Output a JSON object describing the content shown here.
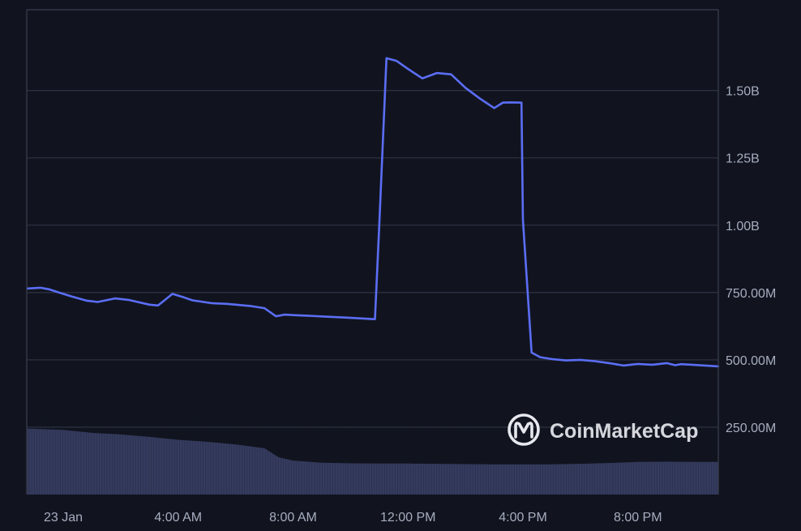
{
  "colors": {
    "background": "#11141f",
    "grid": "#2b3040",
    "axis_line": "#3a3f50",
    "line": "#5b6ef5",
    "volume": "#353b5e",
    "tick_text": "#a7adbf",
    "watermark": "#e6e8ee"
  },
  "watermark": {
    "text": "CoinMarketCap",
    "icon": "coinmarketcap-logo-icon"
  },
  "chart_data": {
    "type": "line",
    "title": "",
    "xlabel": "",
    "ylabel": "",
    "y_axis_position": "right",
    "grid": "horizontal",
    "ylim": [
      0,
      1800000000
    ],
    "xlim": [
      -1.27,
      22.8
    ],
    "y_ticks": [
      {
        "value": 250000000,
        "label": "250.00M"
      },
      {
        "value": 500000000,
        "label": "500.00M"
      },
      {
        "value": 750000000,
        "label": "750.00M"
      },
      {
        "value": 1000000000,
        "label": "1.00B"
      },
      {
        "value": 1250000000,
        "label": "1.25B"
      },
      {
        "value": 1500000000,
        "label": "1.50B"
      }
    ],
    "x_ticks": [
      {
        "value": 0,
        "label": "23 Jan"
      },
      {
        "value": 4,
        "label": "4:00 AM"
      },
      {
        "value": 8,
        "label": "8:00 AM"
      },
      {
        "value": 12,
        "label": "12:00 PM"
      },
      {
        "value": 16,
        "label": "4:00 PM"
      },
      {
        "value": 20,
        "label": "8:00 PM"
      }
    ],
    "series": [
      {
        "kind": "line",
        "x": [
          -1.25,
          -0.8,
          -0.5,
          -0.2,
          0.3,
          0.8,
          1.2,
          1.8,
          2.3,
          3.0,
          3.3,
          3.8,
          4.2,
          4.5,
          5.2,
          5.7,
          6.5,
          7.0,
          7.4,
          7.7,
          8.0,
          8.5,
          9.2,
          9.8,
          10.2,
          10.7,
          10.85,
          11.0,
          11.25,
          11.6,
          12.0,
          12.5,
          13.0,
          13.5,
          14.0,
          14.5,
          15.0,
          15.3,
          15.6,
          15.95,
          16.0,
          16.3,
          16.6,
          17.0,
          17.5,
          18.0,
          18.5,
          19.0,
          19.5,
          20.0,
          20.5,
          21.0,
          21.3,
          21.5,
          22.0,
          22.8
        ],
        "y": [
          765000000,
          768000000,
          762000000,
          752000000,
          735000000,
          720000000,
          715000000,
          728000000,
          722000000,
          705000000,
          702000000,
          745000000,
          732000000,
          721000000,
          710000000,
          708000000,
          700000000,
          692000000,
          662000000,
          668000000,
          666000000,
          664000000,
          660000000,
          657000000,
          655000000,
          652000000,
          651000000,
          1000000000,
          1620000000,
          1610000000,
          1580000000,
          1545000000,
          1565000000,
          1560000000,
          1510000000,
          1470000000,
          1435000000,
          1455000000,
          1456000000,
          1455000000,
          1020000000,
          527000000,
          510000000,
          503000000,
          498000000,
          500000000,
          495000000,
          488000000,
          479000000,
          485000000,
          482000000,
          488000000,
          480000000,
          484000000,
          481000000,
          476000000
        ]
      },
      {
        "kind": "volume",
        "x": [
          -1.25,
          0.0,
          1.0,
          2.0,
          3.0,
          4.0,
          5.0,
          6.0,
          7.0,
          7.5,
          8.0,
          9.0,
          10.0,
          11.0,
          12.0,
          13.0,
          14.0,
          15.0,
          16.0,
          17.0,
          18.0,
          19.0,
          20.0,
          21.0,
          22.0,
          22.8
        ],
        "y": [
          245000000,
          240000000,
          229000000,
          223000000,
          214000000,
          203000000,
          196000000,
          186000000,
          172000000,
          138000000,
          126000000,
          118000000,
          116000000,
          115000000,
          115000000,
          114000000,
          113000000,
          112000000,
          112000000,
          112000000,
          114000000,
          117000000,
          121000000,
          122000000,
          121000000,
          121000000
        ]
      }
    ]
  }
}
